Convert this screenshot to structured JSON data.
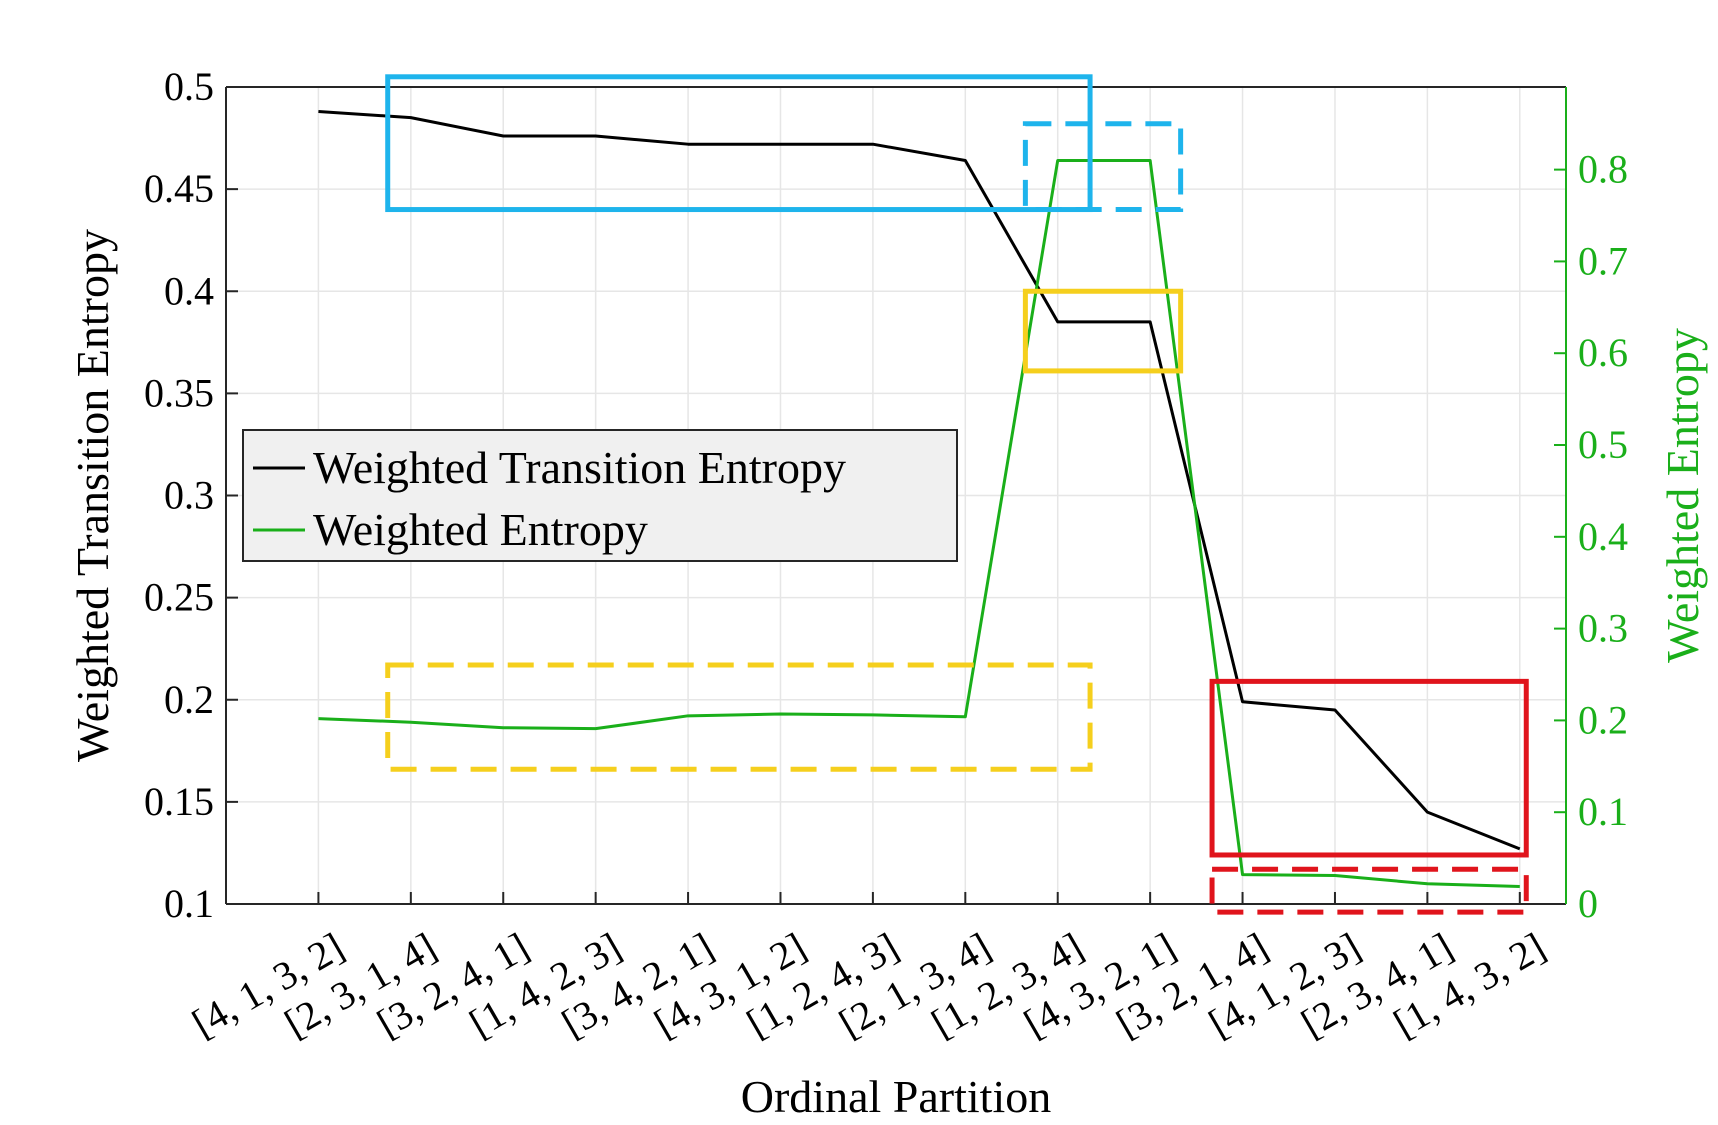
{
  "colors": {
    "left_series": "#000000",
    "right_series": "#1aaf1a",
    "right_axis": "#1aaf1a",
    "highlight_blue": "#1eb4ec",
    "highlight_yellow": "#f5cf1d",
    "highlight_red": "#e0141c",
    "grid": "#e6e6e6",
    "legend_bg": "#f0f0f0"
  },
  "chart_data": {
    "type": "line",
    "title": "",
    "xlabel": "Ordinal Partition",
    "ylabel": "Weighted Transition Entropy",
    "y2label": "Weighted Entropy",
    "categories": [
      "[4, 1, 3, 2]",
      "[2, 3, 1, 4]",
      "[3, 2, 4, 1]",
      "[1, 4, 2, 3]",
      "[3, 4, 2, 1]",
      "[4, 3, 1, 2]",
      "[1, 2, 4, 3]",
      "[2, 1, 3, 4]",
      "[1, 2, 3, 4]",
      "[4, 3, 2, 1]",
      "[3, 2, 1, 4]",
      "[4, 1, 2, 3]",
      "[2, 3, 4, 1]",
      "[1, 4, 3, 2]"
    ],
    "ylim": [
      0.1,
      0.5
    ],
    "yticks": [
      "0.1",
      "0.15",
      "0.2",
      "0.25",
      "0.3",
      "0.35",
      "0.4",
      "0.45",
      "0.5"
    ],
    "y2lim": [
      0,
      0.89
    ],
    "y2ticks": [
      "0",
      "0.1",
      "0.2",
      "0.3",
      "0.4",
      "0.5",
      "0.6",
      "0.7",
      "0.8"
    ],
    "grid": true,
    "legend_position": "center-left",
    "series": [
      {
        "name": "Weighted Transition Entropy",
        "axis": "left",
        "values": [
          0.488,
          0.485,
          0.476,
          0.476,
          0.472,
          0.472,
          0.472,
          0.464,
          0.385,
          0.385,
          0.199,
          0.195,
          0.145,
          0.127
        ]
      },
      {
        "name": "Weighted Entropy",
        "axis": "right",
        "values": [
          0.202,
          0.198,
          0.192,
          0.191,
          0.205,
          0.207,
          0.206,
          0.204,
          0.81,
          0.81,
          0.032,
          0.031,
          0.022,
          0.019
        ]
      }
    ],
    "annotations": [
      {
        "kind": "rect",
        "style": "solid",
        "color": "blue",
        "x_from": 0.75,
        "x_to": 8.35,
        "axis": "left",
        "y_from": 0.44,
        "y_to": 0.505
      },
      {
        "kind": "rect",
        "style": "dashed",
        "color": "blue",
        "x_from": 7.65,
        "x_to": 9.33,
        "axis": "left",
        "y_from": 0.44,
        "y_to": 0.482
      },
      {
        "kind": "rect",
        "style": "solid",
        "color": "yellow",
        "x_from": 7.65,
        "x_to": 9.33,
        "axis": "left",
        "y_from": 0.361,
        "y_to": 0.4
      },
      {
        "kind": "rect",
        "style": "dashed",
        "color": "yellow",
        "x_from": 0.75,
        "x_to": 8.35,
        "axis": "left",
        "y_from": 0.166,
        "y_to": 0.217
      },
      {
        "kind": "rect",
        "style": "solid",
        "color": "red",
        "x_from": 9.67,
        "x_to": 13.07,
        "axis": "left",
        "y_from": 0.124,
        "y_to": 0.209
      },
      {
        "kind": "rect",
        "style": "dashed",
        "color": "red",
        "x_from": 9.67,
        "x_to": 13.07,
        "axis": "left",
        "y_from": 0.096,
        "y_to": 0.117
      }
    ]
  }
}
